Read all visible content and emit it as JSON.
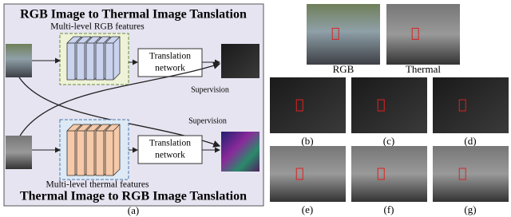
{
  "panel_a": {
    "title_top": "RGB Image to Thermal Image Tanslation",
    "rgb_features_label": "Multi-level RGB features",
    "translation_top": [
      "Translation",
      "network"
    ],
    "supervision_labels": [
      "Supervision",
      "Supervision"
    ],
    "thermal_features_label": "Multi-level thermal features",
    "translation_bottom": [
      "Translation",
      "network"
    ],
    "title_bottom": "Thermal Image to RGB Image Tanslation",
    "caption": "(a)"
  },
  "panel_right": {
    "labels": [
      "RGB",
      "Thermal"
    ],
    "captions": [
      "(b)",
      "(c)",
      "(d)",
      "(e)",
      "(f)",
      "(g)"
    ]
  }
}
